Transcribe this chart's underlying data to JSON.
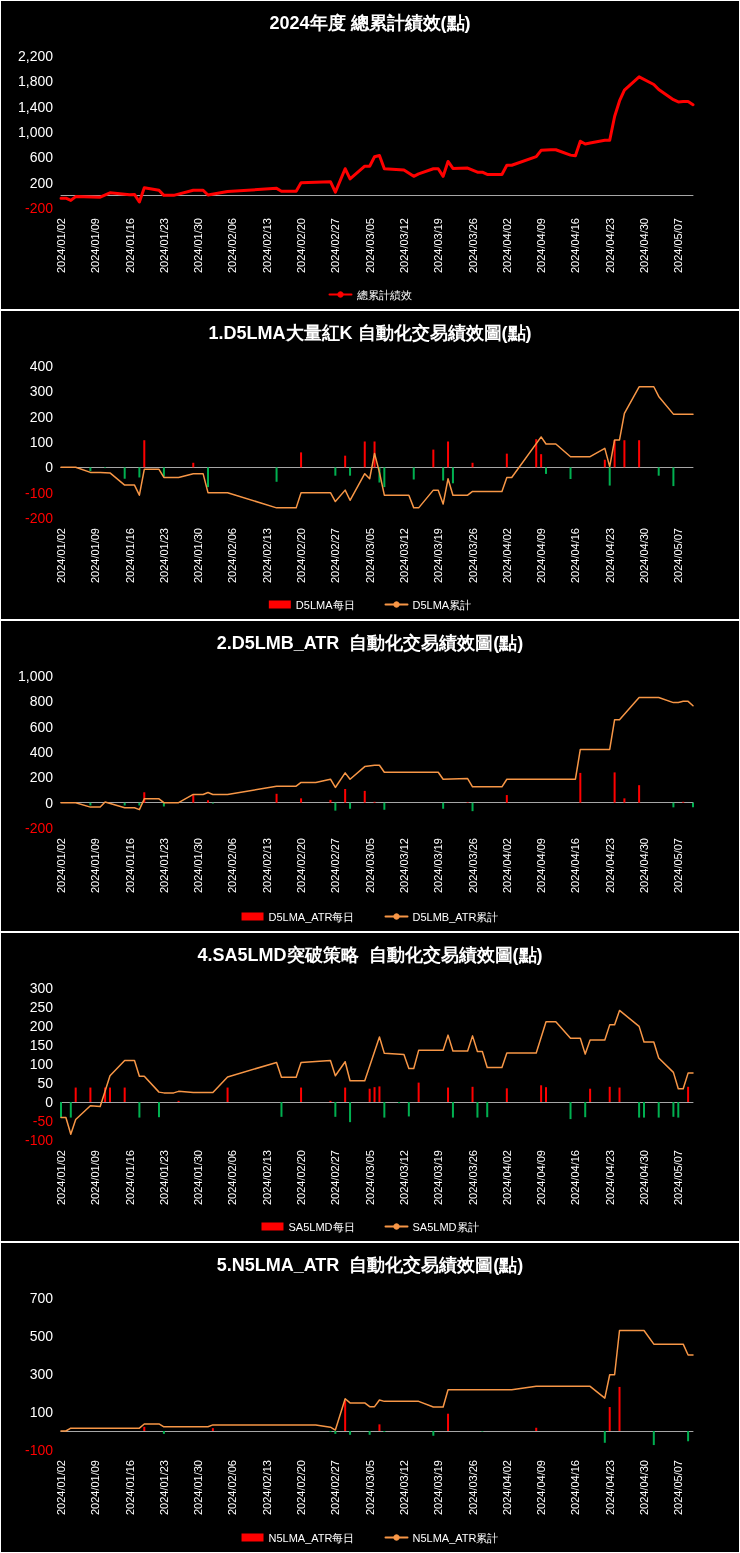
{
  "chart_data": [
    {
      "type": "line",
      "title": "2024年度 總累計績效(點)",
      "legend": "bottom",
      "marker": "none",
      "xlim": [
        "2024-01-02",
        "2024-05-10"
      ],
      "xticks": [
        {
          "value": "2024-01-02",
          "label": "2024/01/02"
        },
        {
          "value": "2024-01-09",
          "label": "2024/01/09"
        },
        {
          "value": "2024-01-16",
          "label": "2024/01/16"
        },
        {
          "value": "2024-01-23",
          "label": "2024/01/23"
        },
        {
          "value": "2024-01-30",
          "label": "2024/01/30"
        },
        {
          "value": "2024-02-06",
          "label": "2024/02/06"
        },
        {
          "value": "2024-02-13",
          "label": "2024/02/13"
        },
        {
          "value": "2024-02-20",
          "label": "2024/02/20"
        },
        {
          "value": "2024-02-27",
          "label": "2024/02/27"
        },
        {
          "value": "2024-03-05",
          "label": "2024/03/05"
        },
        {
          "value": "2024-03-12",
          "label": "2024/03/12"
        },
        {
          "value": "2024-03-19",
          "label": "2024/03/19"
        },
        {
          "value": "2024-03-26",
          "label": "2024/03/26"
        },
        {
          "value": "2024-04-02",
          "label": "2024/04/02"
        },
        {
          "value": "2024-04-09",
          "label": "2024/04/09"
        },
        {
          "value": "2024-04-16",
          "label": "2024/04/16"
        },
        {
          "value": "2024-04-23",
          "label": "2024/04/23"
        },
        {
          "value": "2024-04-30",
          "label": "2024/04/30"
        },
        {
          "value": "2024-05-07",
          "label": "2024/05/07"
        }
      ],
      "ylim": [
        -200,
        2200
      ],
      "yticks": [
        -200,
        200,
        600,
        {
          "value": 1000,
          "label": "1,000"
        },
        {
          "value": 1400,
          "label": "1,400"
        },
        {
          "value": 1800,
          "label": "1,800"
        },
        {
          "value": 2200,
          "label": "2,200"
        }
      ],
      "series": [
        {
          "type": "line",
          "name": "總累計績效",
          "color": "#ff0000",
          "x": [
            "2024-01-02",
            "2024-01-03",
            "2024-01-04",
            "2024-01-05",
            "2024-01-10",
            "2024-01-12",
            "2024-01-16",
            "2024-01-17",
            "2024-01-18",
            "2024-01-19",
            "2024-01-22",
            "2024-01-23",
            "2024-01-25",
            "2024-01-29",
            "2024-01-31",
            "2024-02-01",
            "2024-02-05",
            "2024-02-15",
            "2024-02-16",
            "2024-02-19",
            "2024-02-20",
            "2024-02-26",
            "2024-02-27",
            "2024-02-29",
            "2024-03-01",
            "2024-03-04",
            "2024-03-05",
            "2024-03-06",
            "2024-03-07",
            "2024-03-08",
            "2024-03-12",
            "2024-03-14",
            "2024-03-15",
            "2024-03-18",
            "2024-03-19",
            "2024-03-20",
            "2024-03-21",
            "2024-03-22",
            "2024-03-25",
            "2024-03-27",
            "2024-03-28",
            "2024-03-29",
            "2024-04-01",
            "2024-04-02",
            "2024-04-03",
            "2024-04-08",
            "2024-04-09",
            "2024-04-11",
            "2024-04-12",
            "2024-04-15",
            "2024-04-16",
            "2024-04-17",
            "2024-04-18",
            "2024-04-19",
            "2024-04-22",
            "2024-04-23",
            "2024-04-24",
            "2024-04-25",
            "2024-04-26",
            "2024-04-29",
            "2024-05-02",
            "2024-05-03",
            "2024-05-06",
            "2024-05-07",
            "2024-05-08",
            "2024-05-09",
            "2024-05-10"
          ],
          "values": [
            -45,
            -45,
            -80,
            -20,
            -30,
            40,
            10,
            15,
            -105,
            120,
            80,
            0,
            0,
            80,
            80,
            5,
            60,
            110,
            65,
            65,
            200,
            215,
            50,
            420,
            260,
            460,
            460,
            610,
            630,
            420,
            400,
            300,
            340,
            420,
            420,
            300,
            535,
            425,
            430,
            365,
            365,
            330,
            330,
            475,
            475,
            610,
            710,
            720,
            720,
            635,
            625,
            855,
            810,
            825,
            870,
            870,
            1245,
            1490,
            1660,
            1870,
            1750,
            1670,
            1510,
            1475,
            1480,
            1480,
            1430
          ]
        }
      ]
    },
    {
      "type": "bar",
      "title": "1.D5LMA大量紅K 自動化交易績效圖(點)",
      "legend": "bottom",
      "marker": "none",
      "xlim": [
        "2024-01-02",
        "2024-05-10"
      ],
      "xticks": [
        {
          "value": "2024-01-02",
          "label": "2024/01/02"
        },
        {
          "value": "2024-01-09",
          "label": "2024/01/09"
        },
        {
          "value": "2024-01-16",
          "label": "2024/01/16"
        },
        {
          "value": "2024-01-23",
          "label": "2024/01/23"
        },
        {
          "value": "2024-01-30",
          "label": "2024/01/30"
        },
        {
          "value": "2024-02-06",
          "label": "2024/02/06"
        },
        {
          "value": "2024-02-13",
          "label": "2024/02/13"
        },
        {
          "value": "2024-02-20",
          "label": "2024/02/20"
        },
        {
          "value": "2024-02-27",
          "label": "2024/02/27"
        },
        {
          "value": "2024-03-05",
          "label": "2024/03/05"
        },
        {
          "value": "2024-03-12",
          "label": "2024/03/12"
        },
        {
          "value": "2024-03-19",
          "label": "2024/03/19"
        },
        {
          "value": "2024-03-26",
          "label": "2024/03/26"
        },
        {
          "value": "2024-04-02",
          "label": "2024/04/02"
        },
        {
          "value": "2024-04-09",
          "label": "2024/04/09"
        },
        {
          "value": "2024-04-16",
          "label": "2024/04/16"
        },
        {
          "value": "2024-04-23",
          "label": "2024/04/23"
        },
        {
          "value": "2024-04-30",
          "label": "2024/04/30"
        },
        {
          "value": "2024-05-07",
          "label": "2024/05/07"
        }
      ],
      "ylim": [
        -200,
        400
      ],
      "yticks": [
        -200,
        -100,
        0,
        100,
        200,
        300,
        400
      ],
      "series": [
        {
          "type": "bar",
          "name": "D5LMA每日",
          "color": "#ff0000",
          "x": [
            "2024-01-08",
            "2024-01-11",
            "2024-01-15",
            "2024-01-18",
            "2024-01-19",
            "2024-01-23",
            "2024-01-29",
            "2024-02-01",
            "2024-02-15",
            "2024-02-20",
            "2024-02-27",
            "2024-02-29",
            "2024-03-01",
            "2024-03-04",
            "2024-03-06",
            "2024-03-07",
            "2024-03-08",
            "2024-03-14",
            "2024-03-18",
            "2024-03-20",
            "2024-03-21",
            "2024-03-22",
            "2024-03-26",
            "2024-04-02",
            "2024-04-08",
            "2024-04-09",
            "2024-04-10",
            "2024-04-15",
            "2024-04-22",
            "2024-04-23",
            "2024-04-24",
            "2024-04-26",
            "2024-04-29",
            "2024-05-03",
            "2024-05-06"
          ],
          "values": [
            -15,
            -3,
            -45,
            -40,
            107,
            -37,
            18,
            -78,
            -57,
            59,
            -33,
            46,
            -33,
            102,
            102,
            -60,
            -78,
            -48,
            70,
            -52,
            102,
            -63,
            18,
            54,
            111,
            52,
            -26,
            -46,
            30,
            -72,
            107,
            107,
            107,
            -33,
            -74
          ],
          "colors": [
            "#00b050",
            "#00b050",
            "#00b050",
            "#00b050",
            "#ff0000",
            "#00b050",
            "#ff0000",
            "#00b050",
            "#00b050",
            "#ff0000",
            "#00b050",
            "#ff0000",
            "#00b050",
            "#ff0000",
            "#ff0000",
            "#00b050",
            "#00b050",
            "#00b050",
            "#ff0000",
            "#00b050",
            "#ff0000",
            "#00b050",
            "#ff0000",
            "#ff0000",
            "#ff0000",
            "#ff0000",
            "#00b050",
            "#00b050",
            "#ff0000",
            "#00b050",
            "#ff0000",
            "#ff0000",
            "#ff0000",
            "#00b050",
            "#00b050"
          ]
        },
        {
          "type": "line",
          "name": "D5LMA累計",
          "color": "#f79646",
          "x": [
            "2024-01-02",
            "2024-01-05",
            "2024-01-08",
            "2024-01-10",
            "2024-01-12",
            "2024-01-15",
            "2024-01-17",
            "2024-01-18",
            "2024-01-19",
            "2024-01-22",
            "2024-01-23",
            "2024-01-26",
            "2024-01-29",
            "2024-01-31",
            "2024-02-01",
            "2024-02-05",
            "2024-02-15",
            "2024-02-19",
            "2024-02-20",
            "2024-02-26",
            "2024-02-27",
            "2024-02-29",
            "2024-03-01",
            "2024-03-04",
            "2024-03-05",
            "2024-03-06",
            "2024-03-07",
            "2024-03-08",
            "2024-03-13",
            "2024-03-14",
            "2024-03-15",
            "2024-03-18",
            "2024-03-19",
            "2024-03-20",
            "2024-03-21",
            "2024-03-22",
            "2024-03-25",
            "2024-03-26",
            "2024-04-01",
            "2024-04-02",
            "2024-04-03",
            "2024-04-09",
            "2024-04-10",
            "2024-04-12",
            "2024-04-15",
            "2024-04-19",
            "2024-04-22",
            "2024-04-23",
            "2024-04-24",
            "2024-04-25",
            "2024-04-26",
            "2024-04-29",
            "2024-05-02",
            "2024-05-03",
            "2024-05-06",
            "2024-05-10"
          ],
          "values": [
            0,
            0,
            -20,
            -20,
            -22,
            -70,
            -70,
            -110,
            -8,
            -8,
            -40,
            -40,
            -25,
            -25,
            -100,
            -100,
            -160,
            -160,
            -100,
            -100,
            -135,
            -90,
            -130,
            -25,
            -45,
            55,
            -20,
            -110,
            -110,
            -160,
            -160,
            -90,
            -90,
            -145,
            -45,
            -110,
            -110,
            -95,
            -95,
            -40,
            -40,
            120,
            92,
            92,
            42,
            42,
            75,
            3,
            108,
            108,
            213,
            318,
            318,
            280,
            210,
            210
          ]
        }
      ]
    },
    {
      "type": "bar",
      "title": "2.D5LMB_ATR  自動化交易績效圖(點)",
      "legend": "bottom",
      "marker": "none",
      "xlim": [
        "2024-01-02",
        "2024-05-10"
      ],
      "xticks": [
        {
          "value": "2024-01-02",
          "label": "2024/01/02"
        },
        {
          "value": "2024-01-09",
          "label": "2024/01/09"
        },
        {
          "value": "2024-01-16",
          "label": "2024/01/16"
        },
        {
          "value": "2024-01-23",
          "label": "2024/01/23"
        },
        {
          "value": "2024-01-30",
          "label": "2024/01/30"
        },
        {
          "value": "2024-02-06",
          "label": "2024/02/06"
        },
        {
          "value": "2024-02-13",
          "label": "2024/02/13"
        },
        {
          "value": "2024-02-20",
          "label": "2024/02/20"
        },
        {
          "value": "2024-02-27",
          "label": "2024/02/27"
        },
        {
          "value": "2024-03-05",
          "label": "2024/03/05"
        },
        {
          "value": "2024-03-12",
          "label": "2024/03/12"
        },
        {
          "value": "2024-03-19",
          "label": "2024/03/19"
        },
        {
          "value": "2024-03-26",
          "label": "2024/03/26"
        },
        {
          "value": "2024-04-02",
          "label": "2024/04/02"
        },
        {
          "value": "2024-04-09",
          "label": "2024/04/09"
        },
        {
          "value": "2024-04-16",
          "label": "2024/04/16"
        },
        {
          "value": "2024-04-23",
          "label": "2024/04/23"
        },
        {
          "value": "2024-04-30",
          "label": "2024/04/30"
        },
        {
          "value": "2024-05-07",
          "label": "2024/05/07"
        }
      ],
      "ylim": [
        -200,
        1000
      ],
      "yticks": [
        -200,
        0,
        200,
        400,
        600,
        800,
        {
          "value": 1000,
          "label": "1,000"
        }
      ],
      "series": [
        {
          "type": "bar",
          "name": "D5LMA_ATR每日",
          "color": "#ff0000",
          "x": [
            "2024-01-08",
            "2024-01-11",
            "2024-01-15",
            "2024-01-18",
            "2024-01-19",
            "2024-01-23",
            "2024-01-29",
            "2024-02-01",
            "2024-02-02",
            "2024-02-15",
            "2024-02-20",
            "2024-02-26",
            "2024-02-27",
            "2024-02-29",
            "2024-03-01",
            "2024-03-04",
            "2024-03-06",
            "2024-03-08",
            "2024-03-20",
            "2024-03-25",
            "2024-03-26",
            "2024-04-02",
            "2024-04-17",
            "2024-04-24",
            "2024-04-26",
            "2024-04-29",
            "2024-05-06",
            "2024-05-08",
            "2024-05-10"
          ],
          "values": [
            -22,
            null,
            -22,
            -22,
            82,
            -30,
            60,
            19,
            -7,
            70,
            34,
            22,
            -63,
            108,
            -48,
            93,
            7,
            -56,
            -48,
            4,
            -67,
            60,
            235,
            239,
            34,
            138,
            -37,
            7,
            -37
          ],
          "colors": [
            "#00b050",
            "#ff0000",
            "#00b050",
            "#00b050",
            "#ff0000",
            "#00b050",
            "#ff0000",
            "#ff0000",
            "#00b050",
            "#ff0000",
            "#ff0000",
            "#ff0000",
            "#00b050",
            "#ff0000",
            "#00b050",
            "#ff0000",
            "#ff0000",
            "#00b050",
            "#00b050",
            "#ff0000",
            "#00b050",
            "#ff0000",
            "#ff0000",
            "#ff0000",
            "#ff0000",
            "#ff0000",
            "#00b050",
            "#ff0000",
            "#00b050"
          ]
        },
        {
          "type": "line",
          "name": "D5LMB_ATR累計",
          "color": "#f79646",
          "x": [
            "2024-01-02",
            "2024-01-05",
            "2024-01-08",
            "2024-01-10",
            "2024-01-11",
            "2024-01-15",
            "2024-01-17",
            "2024-01-18",
            "2024-01-19",
            "2024-01-22",
            "2024-01-23",
            "2024-01-26",
            "2024-01-29",
            "2024-01-31",
            "2024-02-01",
            "2024-02-02",
            "2024-02-05",
            "2024-02-15",
            "2024-02-19",
            "2024-02-20",
            "2024-02-23",
            "2024-02-26",
            "2024-02-27",
            "2024-02-29",
            "2024-03-01",
            "2024-03-04",
            "2024-03-06",
            "2024-03-07",
            "2024-03-08",
            "2024-03-19",
            "2024-03-20",
            "2024-03-25",
            "2024-03-26",
            "2024-04-01",
            "2024-04-02",
            "2024-04-16",
            "2024-04-17",
            "2024-04-23",
            "2024-04-24",
            "2024-04-25",
            "2024-04-29",
            "2024-05-03",
            "2024-05-06",
            "2024-05-07",
            "2024-05-08",
            "2024-05-09",
            "2024-05-10"
          ],
          "values": [
            0,
            0,
            -35,
            -35,
            5,
            -40,
            -40,
            -55,
            30,
            30,
            0,
            0,
            65,
            65,
            80,
            65,
            65,
            130,
            130,
            160,
            160,
            185,
            120,
            235,
            185,
            285,
            295,
            295,
            240,
            240,
            185,
            190,
            125,
            125,
            185,
            185,
            420,
            420,
            655,
            655,
            830,
            830,
            790,
            790,
            800,
            800,
            765
          ]
        }
      ]
    },
    {
      "type": "bar",
      "title": "4.SA5LMD突破策略  自動化交易績效圖(點)",
      "legend": "bottom",
      "marker": "none",
      "xlim": [
        "2024-01-02",
        "2024-05-10"
      ],
      "xticks": [
        {
          "value": "2024-01-02",
          "label": "2024/01/02"
        },
        {
          "value": "2024-01-09",
          "label": "2024/01/09"
        },
        {
          "value": "2024-01-16",
          "label": "2024/01/16"
        },
        {
          "value": "2024-01-23",
          "label": "2024/01/23"
        },
        {
          "value": "2024-01-30",
          "label": "2024/01/30"
        },
        {
          "value": "2024-02-06",
          "label": "2024/02/06"
        },
        {
          "value": "2024-02-13",
          "label": "2024/02/13"
        },
        {
          "value": "2024-02-20",
          "label": "2024/02/20"
        },
        {
          "value": "2024-02-27",
          "label": "2024/02/27"
        },
        {
          "value": "2024-03-05",
          "label": "2024/03/05"
        },
        {
          "value": "2024-03-12",
          "label": "2024/03/12"
        },
        {
          "value": "2024-03-19",
          "label": "2024/03/19"
        },
        {
          "value": "2024-03-26",
          "label": "2024/03/26"
        },
        {
          "value": "2024-04-02",
          "label": "2024/04/02"
        },
        {
          "value": "2024-04-09",
          "label": "2024/04/09"
        },
        {
          "value": "2024-04-16",
          "label": "2024/04/16"
        },
        {
          "value": "2024-04-23",
          "label": "2024/04/23"
        },
        {
          "value": "2024-04-30",
          "label": "2024/04/30"
        },
        {
          "value": "2024-05-07",
          "label": "2024/05/07"
        }
      ],
      "ylim": [
        -100,
        300
      ],
      "yticks": [
        -100,
        -50,
        0,
        50,
        100,
        150,
        200,
        250,
        300
      ],
      "series": [
        {
          "type": "bar",
          "name": "SA5LMD每日",
          "color": "#ff0000",
          "x": [
            "2024-01-02",
            "2024-01-04",
            "2024-01-05",
            "2024-01-08",
            "2024-01-11",
            "2024-01-12",
            "2024-01-15",
            "2024-01-18",
            "2024-01-22",
            "2024-01-26",
            "2024-02-05",
            "2024-02-16",
            "2024-02-20",
            "2024-02-26",
            "2024-02-27",
            "2024-02-29",
            "2024-03-01",
            "2024-03-05",
            "2024-03-06",
            "2024-03-07",
            "2024-03-08",
            "2024-03-11",
            "2024-03-13",
            "2024-03-15",
            "2024-03-21",
            "2024-03-22",
            "2024-03-26",
            "2024-03-27",
            "2024-03-29",
            "2024-04-02",
            "2024-04-09",
            "2024-04-10",
            "2024-04-15",
            "2024-04-18",
            "2024-04-19",
            "2024-04-23",
            "2024-04-25",
            "2024-04-29",
            "2024-04-30",
            "2024-05-03",
            "2024-05-06",
            "2024-05-07",
            "2024-05-09"
          ],
          "values": [
            -41,
            -41,
            38,
            38,
            38,
            38,
            38,
            -41,
            -40,
            3,
            38,
            -39,
            38,
            3,
            -39,
            38,
            -53,
            35,
            39,
            41,
            -41,
            -3,
            -38,
            51,
            38,
            -41,
            40,
            -41,
            -40,
            36,
            44,
            39,
            -45,
            -40,
            35,
            40,
            38,
            -41,
            -41,
            -41,
            -39,
            -41,
            40
          ],
          "colors": [
            "#00b050",
            "#00b050",
            "#ff0000",
            "#ff0000",
            "#ff0000",
            "#ff0000",
            "#ff0000",
            "#00b050",
            "#00b050",
            "#ff0000",
            "#ff0000",
            "#00b050",
            "#ff0000",
            "#ff0000",
            "#00b050",
            "#ff0000",
            "#00b050",
            "#ff0000",
            "#ff0000",
            "#ff0000",
            "#00b050",
            "#00b050",
            "#00b050",
            "#ff0000",
            "#ff0000",
            "#00b050",
            "#ff0000",
            "#00b050",
            "#00b050",
            "#ff0000",
            "#ff0000",
            "#ff0000",
            "#00b050",
            "#00b050",
            "#ff0000",
            "#ff0000",
            "#ff0000",
            "#00b050",
            "#00b050",
            "#00b050",
            "#00b050",
            "#00b050",
            "#ff0000"
          ]
        },
        {
          "type": "line",
          "name": "SA5LMD累計",
          "color": "#f79646",
          "x": [
            "2024-01-02",
            "2024-01-03",
            "2024-01-04",
            "2024-01-05",
            "2024-01-08",
            "2024-01-10",
            "2024-01-12",
            "2024-01-15",
            "2024-01-17",
            "2024-01-18",
            "2024-01-19",
            "2024-01-22",
            "2024-01-23",
            "2024-01-25",
            "2024-01-26",
            "2024-01-29",
            "2024-02-02",
            "2024-02-05",
            "2024-02-15",
            "2024-02-16",
            "2024-02-19",
            "2024-02-20",
            "2024-02-26",
            "2024-02-27",
            "2024-02-29",
            "2024-03-01",
            "2024-03-04",
            "2024-03-07",
            "2024-03-08",
            "2024-03-12",
            "2024-03-13",
            "2024-03-14",
            "2024-03-15",
            "2024-03-20",
            "2024-03-21",
            "2024-03-22",
            "2024-03-25",
            "2024-03-26",
            "2024-03-27",
            "2024-03-28",
            "2024-03-29",
            "2024-04-01",
            "2024-04-02",
            "2024-04-08",
            "2024-04-10",
            "2024-04-12",
            "2024-04-15",
            "2024-04-17",
            "2024-04-18",
            "2024-04-19",
            "2024-04-22",
            "2024-04-23",
            "2024-04-24",
            "2024-04-25",
            "2024-04-29",
            "2024-04-30",
            "2024-05-02",
            "2024-05-03",
            "2024-05-06",
            "2024-05-07",
            "2024-05-08",
            "2024-05-09",
            "2024-05-10"
          ],
          "values": [
            -41,
            -41,
            -85,
            -46,
            -10,
            -12,
            69,
            109,
            109,
            68,
            68,
            26,
            24,
            24,
            28,
            25,
            25,
            66,
            104,
            65,
            65,
            104,
            109,
            69,
            106,
            56,
            56,
            171,
            128,
            125,
            88,
            88,
            136,
            136,
            176,
            134,
            134,
            174,
            133,
            133,
            91,
            91,
            129,
            129,
            211,
            211,
            168,
            168,
            126,
            163,
            163,
            203,
            203,
            241,
            199,
            158,
            158,
            116,
            78,
            35,
            35,
            76,
            76
          ]
        }
      ]
    },
    {
      "type": "bar",
      "title": "5.N5LMA_ATR  自動化交易績效圖(點)",
      "legend": "bottom",
      "marker": "none",
      "xlim": [
        "2024-01-02",
        "2024-05-10"
      ],
      "xticks": [
        {
          "value": "2024-01-02",
          "label": "2024/01/02"
        },
        {
          "value": "2024-01-09",
          "label": "2024/01/09"
        },
        {
          "value": "2024-01-16",
          "label": "2024/01/16"
        },
        {
          "value": "2024-01-23",
          "label": "2024/01/23"
        },
        {
          "value": "2024-01-30",
          "label": "2024/01/30"
        },
        {
          "value": "2024-02-06",
          "label": "2024/02/06"
        },
        {
          "value": "2024-02-13",
          "label": "2024/02/13"
        },
        {
          "value": "2024-02-20",
          "label": "2024/02/20"
        },
        {
          "value": "2024-02-27",
          "label": "2024/02/27"
        },
        {
          "value": "2024-03-05",
          "label": "2024/03/05"
        },
        {
          "value": "2024-03-12",
          "label": "2024/03/12"
        },
        {
          "value": "2024-03-19",
          "label": "2024/03/19"
        },
        {
          "value": "2024-03-26",
          "label": "2024/03/26"
        },
        {
          "value": "2024-04-02",
          "label": "2024/04/02"
        },
        {
          "value": "2024-04-09",
          "label": "2024/04/09"
        },
        {
          "value": "2024-04-16",
          "label": "2024/04/16"
        },
        {
          "value": "2024-04-23",
          "label": "2024/04/23"
        },
        {
          "value": "2024-04-30",
          "label": "2024/04/30"
        },
        {
          "value": "2024-05-07",
          "label": "2024/05/07"
        }
      ],
      "ylim": [
        -100,
        700
      ],
      "yticks": [
        -100,
        100,
        300,
        500,
        700
      ],
      "series": [
        {
          "type": "bar",
          "name": "N5LMA_ATR每日",
          "color": "#ff0000",
          "x": [
            "2024-01-19",
            "2024-01-23",
            "2024-02-02",
            "2024-02-26",
            "2024-02-27",
            "2024-02-29",
            "2024-03-01",
            "2024-03-05",
            "2024-03-07",
            "2024-03-08",
            "2024-03-18",
            "2024-03-21",
            "2024-03-28",
            "2024-04-08",
            "2024-04-22",
            "2024-04-23",
            "2024-04-25",
            "2024-05-02",
            "2024-05-09"
          ],
          "values": [
            22,
            -15,
            15,
            -5,
            -15,
            158,
            -20,
            -20,
            35,
            -5,
            -25,
            91,
            -3,
            17,
            -62,
            126,
            232,
            -74,
            -54
          ],
          "colors": [
            "#ff0000",
            "#00b050",
            "#ff0000",
            "#00b050",
            "#00b050",
            "#ff0000",
            "#00b050",
            "#00b050",
            "#ff0000",
            "#00b050",
            "#00b050",
            "#ff0000",
            "#00b050",
            "#ff0000",
            "#00b050",
            "#ff0000",
            "#ff0000",
            "#00b050",
            "#00b050"
          ]
        },
        {
          "type": "line",
          "name": "N5LMA_ATR累計",
          "color": "#f79646",
          "x": [
            "2024-01-02",
            "2024-01-03",
            "2024-01-04",
            "2024-01-18",
            "2024-01-19",
            "2024-01-22",
            "2024-01-23",
            "2024-02-01",
            "2024-02-02",
            "2024-02-23",
            "2024-02-26",
            "2024-02-27",
            "2024-02-29",
            "2024-03-01",
            "2024-03-04",
            "2024-03-05",
            "2024-03-06",
            "2024-03-07",
            "2024-03-08",
            "2024-03-15",
            "2024-03-18",
            "2024-03-20",
            "2024-03-21",
            "2024-04-03",
            "2024-04-08",
            "2024-04-19",
            "2024-04-22",
            "2024-04-23",
            "2024-04-24",
            "2024-04-25",
            "2024-04-30",
            "2024-05-02",
            "2024-05-08",
            "2024-05-09",
            "2024-05-10"
          ],
          "values": [
            0,
            0,
            15,
            15,
            37,
            37,
            22,
            22,
            32,
            32,
            20,
            5,
            170,
            148,
            148,
            128,
            128,
            163,
            156,
            156,
            126,
            126,
            217,
            217,
            235,
            235,
            173,
            296,
            296,
            529,
            529,
            457,
            457,
            400,
            400
          ]
        }
      ]
    }
  ]
}
